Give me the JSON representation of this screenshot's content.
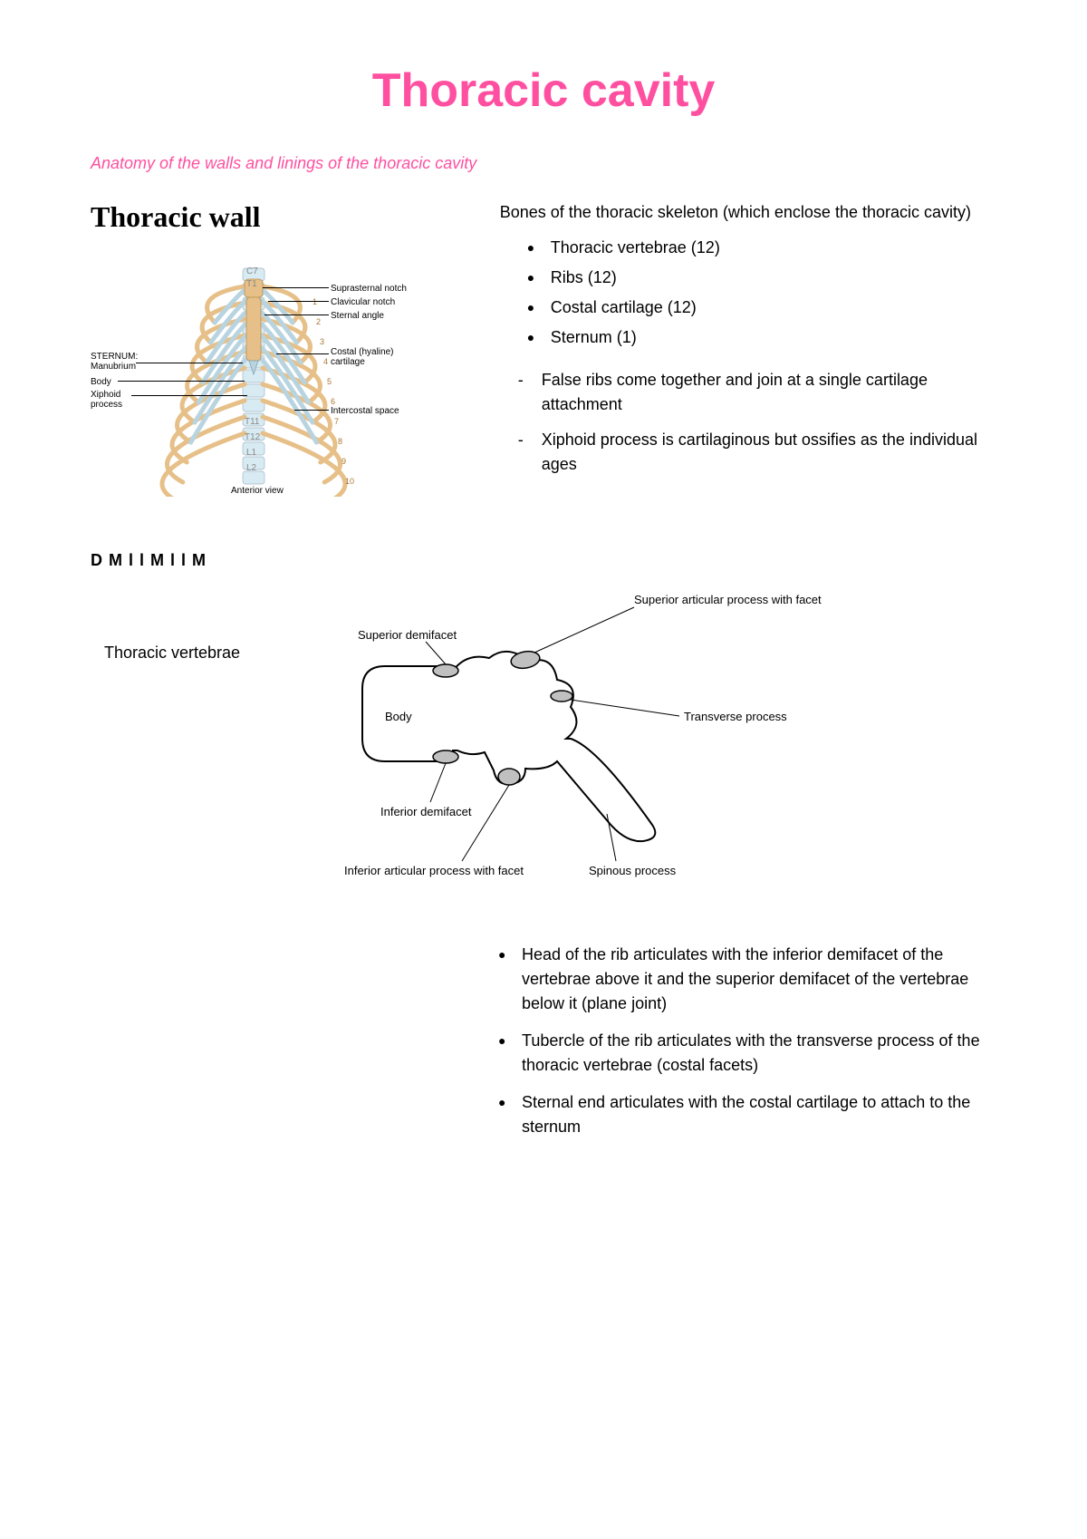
{
  "title": {
    "text": "Thoracic cavity",
    "color": "#ff4fa0"
  },
  "subtitle": {
    "text": "Anatomy of the walls and linings of the thoracic cavity",
    "color": "#ff4fa0"
  },
  "section1": {
    "heading": "Thoracic wall",
    "intro": "Bones of the thoracic skeleton (which enclose the thoracic cavity)",
    "bones": [
      "Thoracic vertebrae (12)",
      "Ribs (12)",
      "Costal cartilage (12)",
      "Sternum (1)"
    ],
    "notes": [
      "False ribs come together and join at a single cartilage attachment",
      "Xiphoid process is cartilaginous but ossifies as the individual ages"
    ],
    "diagram": {
      "left_labels": {
        "sternum_head": "STERNUM:",
        "manubrium": "Manubrium",
        "body": "Body",
        "xiphoid": "Xiphoid\nprocess"
      },
      "right_labels": {
        "suprasternal": "Suprasternal notch",
        "clavicular": "Clavicular notch",
        "sternal_angle": "Sternal angle",
        "costal_cartilage": "Costal (hyaline)\ncartilage",
        "intercostal": "Intercostal space"
      },
      "spine_labels": [
        "C7",
        "T1",
        "T11",
        "T12",
        "L1",
        "L2"
      ],
      "rib_numbers": [
        "1",
        "2",
        "3",
        "4",
        "5",
        "6",
        "7",
        "8",
        "9",
        "10"
      ],
      "caption": "Anterior view",
      "rib_color": "#e6c088",
      "cartilage_color": "#b8d4e0",
      "spine_color": "#d8ebf3"
    }
  },
  "author_fragment": "D  M  l         l  M  l           l  M",
  "vertebra_section": {
    "label": "Thoracic vertebrae",
    "diagram_labels": {
      "superior_process": "Superior articular process with facet",
      "superior_demifacet": "Superior demifacet",
      "body": "Body",
      "transverse_process": "Transverse process",
      "inferior_demifacet": "Inferior demifacet",
      "inferior_process": "Inferior articular process with facet",
      "spinous_process": "Spinous process"
    },
    "facet_fill": "#c0c0c0"
  },
  "articulation_bullets": [
    "Head of the rib articulates with the inferior demifacet of the vertebrae above it and the superior demifacet of the vertebrae below it (plane joint)",
    "Tubercle of the rib articulates with the transverse process of the thoracic vertebrae (costal facets)",
    "Sternal end articulates with the costal cartilage to attach to the sternum"
  ]
}
